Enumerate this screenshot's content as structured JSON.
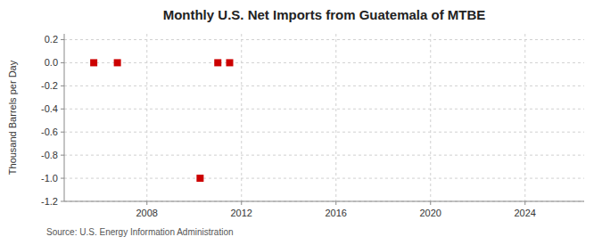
{
  "chart_data": {
    "type": "scatter",
    "title": "Monthly U.S. Net Imports from Guatemala of MTBE",
    "ylabel": "Thousand Barrels per Day",
    "annotations": [
      "Source: U.S. Energy Information Administration"
    ],
    "x": [
      2005.75,
      2006.75,
      2010.25,
      2011.0,
      2011.5
    ],
    "values": [
      0.0,
      0.0,
      -1.0,
      0.0,
      0.0
    ],
    "color": "#cc0000",
    "marker": "square",
    "xlim": [
      2004.5,
      2026.5
    ],
    "ylim": [
      -1.2,
      0.25
    ],
    "xticks": [
      2008,
      2012,
      2016,
      2020,
      2024
    ],
    "yticks": [
      0.2,
      {
        "value": 0,
        "label": "0.0"
      },
      -0.2,
      -0.4,
      -0.6,
      -0.8,
      {
        "value": -1,
        "label": "-1.0"
      },
      -1.2
    ],
    "grid": true
  }
}
